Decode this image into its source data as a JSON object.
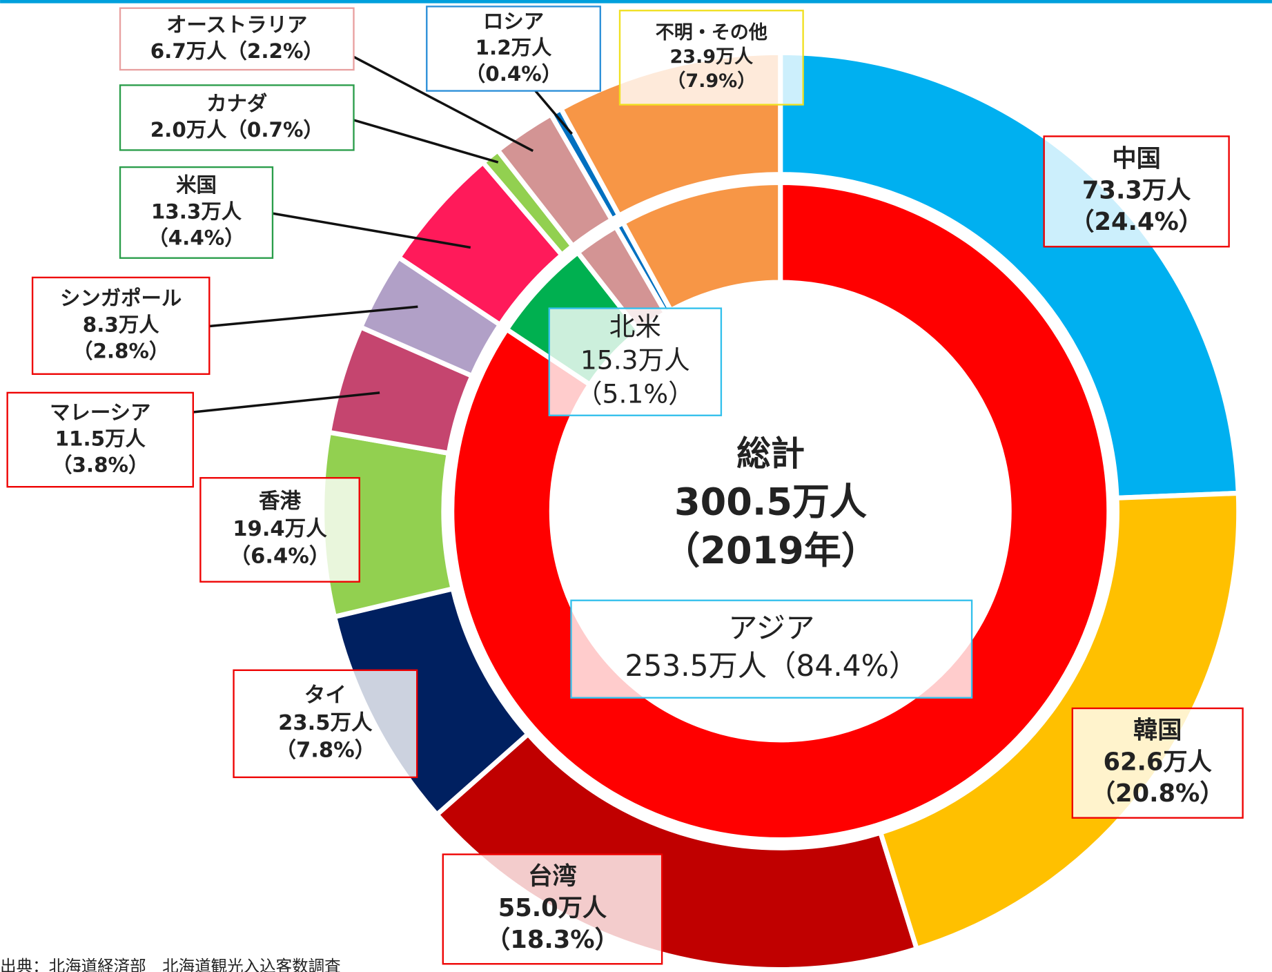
{
  "chart_data": {
    "type": "donut",
    "center_text": [
      "総計",
      "300.5万人",
      "（2019年）"
    ],
    "source": "出典：北海道経済部　北海道観光入込客数調査",
    "series": [
      {
        "categories": [
          "中国",
          "韓国",
          "台湾",
          "タイ",
          "香港",
          "マレーシア",
          "シンガポール",
          "米国",
          "カナダ",
          "オーストラリア",
          "ロシア",
          "不明・その他"
        ],
        "values": [
          73.3,
          62.6,
          55.0,
          23.5,
          19.4,
          11.5,
          8.3,
          13.3,
          2.0,
          6.7,
          1.2,
          23.9
        ],
        "value_labels": [
          [
            "73.3万人",
            "（24.4%）"
          ],
          [
            "62.6万人",
            "（20.8%）"
          ],
          [
            "55.0万人",
            "（18.3%）"
          ],
          [
            "23.5万人",
            "（7.8%）"
          ],
          [
            "19.4万人",
            "（6.4%）"
          ],
          [
            "11.5万人",
            "（3.8%）"
          ],
          [
            "8.3万人",
            "（2.8%）"
          ],
          [
            "13.3万人",
            "（4.4%）"
          ],
          [
            "2.0万人（0.7%）"
          ],
          [
            "6.7万人（2.2%）"
          ],
          [
            "1.2万人",
            "（0.4%）"
          ],
          [
            "23.9万人",
            "（7.9%）"
          ]
        ],
        "colors": [
          "#00b0f0",
          "#ffc000",
          "#c00000",
          "#002060",
          "#92d050",
          "#c5456f",
          "#b1a0c7",
          "#ff1a5a",
          "#92d050",
          "#d39494",
          "#0070c0",
          "#f79646"
        ]
      },
      {
        "categories": [
          "アジア",
          "北米",
          null,
          null,
          null
        ],
        "values": [
          253.5,
          15.3,
          6.7,
          1.2,
          23.9
        ],
        "value_labels": [
          [
            "253.5万人（84.4%）"
          ],
          [
            "15.3万人",
            "（5.1%）"
          ],
          null,
          null,
          null
        ],
        "colors": [
          "#ff0000",
          "#00b050",
          "#d39494",
          "#0070c0",
          "#f79646"
        ]
      }
    ]
  }
}
